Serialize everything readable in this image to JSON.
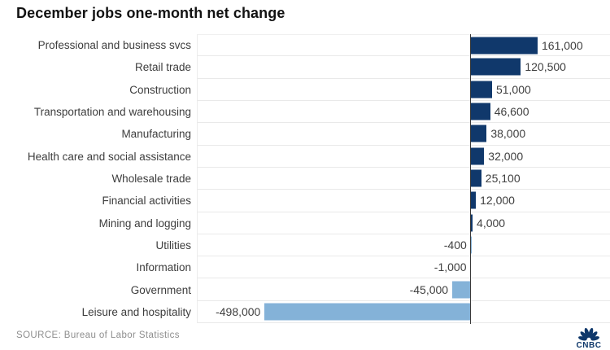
{
  "title": "December jobs one-month net change",
  "source": "SOURCE: Bureau of Labor Statistics",
  "logo": {
    "name": "nbc-peacock",
    "wordmark": "CNBC"
  },
  "colors": {
    "positive_bar": "#10386b",
    "negative_bar": "#84b2d8",
    "axis": "#3a3a3a",
    "separator": "#e9e9e9",
    "title_text": "#121212",
    "category_text": "#3d3d3d",
    "value_text": "#404040",
    "source_text": "#8e8e8e"
  },
  "chart_data": {
    "type": "bar",
    "orientation": "horizontal",
    "title": "December jobs one-month net change",
    "categories": [
      "Professional and business svcs",
      "Retail trade",
      "Construction",
      "Transportation and warehousing",
      "Manufacturing",
      "Health care and social assistance",
      "Wholesale trade",
      "Financial activities",
      "Mining and logging",
      "Utilities",
      "Information",
      "Government",
      "Leisure and hospitality"
    ],
    "values": [
      161000,
      120500,
      51000,
      46600,
      38000,
      32000,
      25100,
      12000,
      4000,
      -400,
      -1000,
      -45000,
      -498000
    ],
    "value_labels": [
      "161,000",
      "120,500",
      "51,000",
      "46,600",
      "38,000",
      "32,000",
      "25,100",
      "12,000",
      "4,000",
      "-400",
      "-1,000",
      "-45,000",
      "-498,000"
    ],
    "baseline": 0,
    "xlim": [
      -660000,
      338000
    ],
    "grid": "row-separators-only",
    "legend": "none",
    "value_labels_position": "bar-end"
  }
}
